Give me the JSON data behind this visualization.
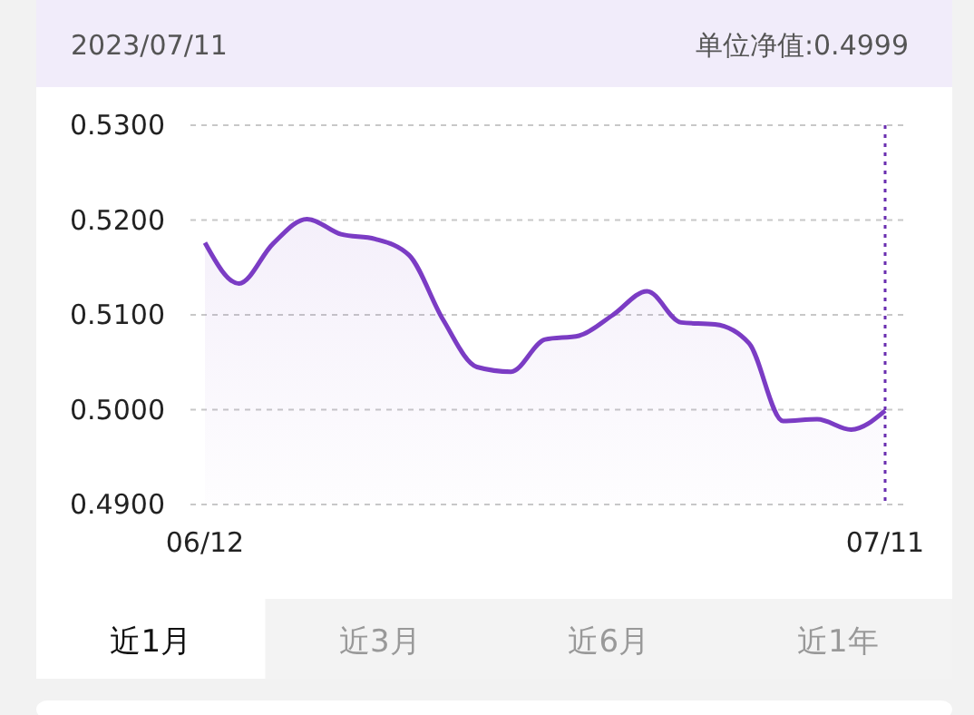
{
  "chart_data": {
    "type": "area",
    "title": "2023/07/11",
    "subtitle": "单位净值:0.4999",
    "categories": [
      "06/12",
      null,
      null,
      null,
      null,
      null,
      null,
      null,
      null,
      null,
      null,
      null,
      null,
      null,
      null,
      null,
      null,
      null,
      null,
      null,
      "07/11"
    ],
    "series": [
      {
        "color": "#7b3cc4",
        "values": [
          0.5176,
          0.5133,
          0.5175,
          0.5201,
          0.5185,
          0.518,
          0.5163,
          0.5095,
          0.5045,
          0.504,
          0.5074,
          0.5078,
          0.51,
          0.5125,
          0.5092,
          0.509,
          0.507,
          0.4988,
          0.499,
          0.4979,
          0.4999
        ]
      }
    ],
    "ylim": [
      0.49,
      0.53
    ],
    "yticks": [
      {
        "value": 0.49,
        "label": "0.4900"
      },
      {
        "value": 0.5,
        "label": "0.5000"
      },
      {
        "value": 0.51,
        "label": "0.5100"
      },
      {
        "value": 0.52,
        "label": "0.5200"
      },
      {
        "value": 0.53,
        "label": "0.5300"
      }
    ],
    "grid": "y",
    "marker": "none",
    "ref_lines": [
      {
        "axis": "x",
        "value": "07/11",
        "color": "#6a2fb0",
        "line_style": "dotted"
      }
    ],
    "annotations": [
      "近1月",
      "近3月",
      "近6月",
      "近1年"
    ]
  }
}
